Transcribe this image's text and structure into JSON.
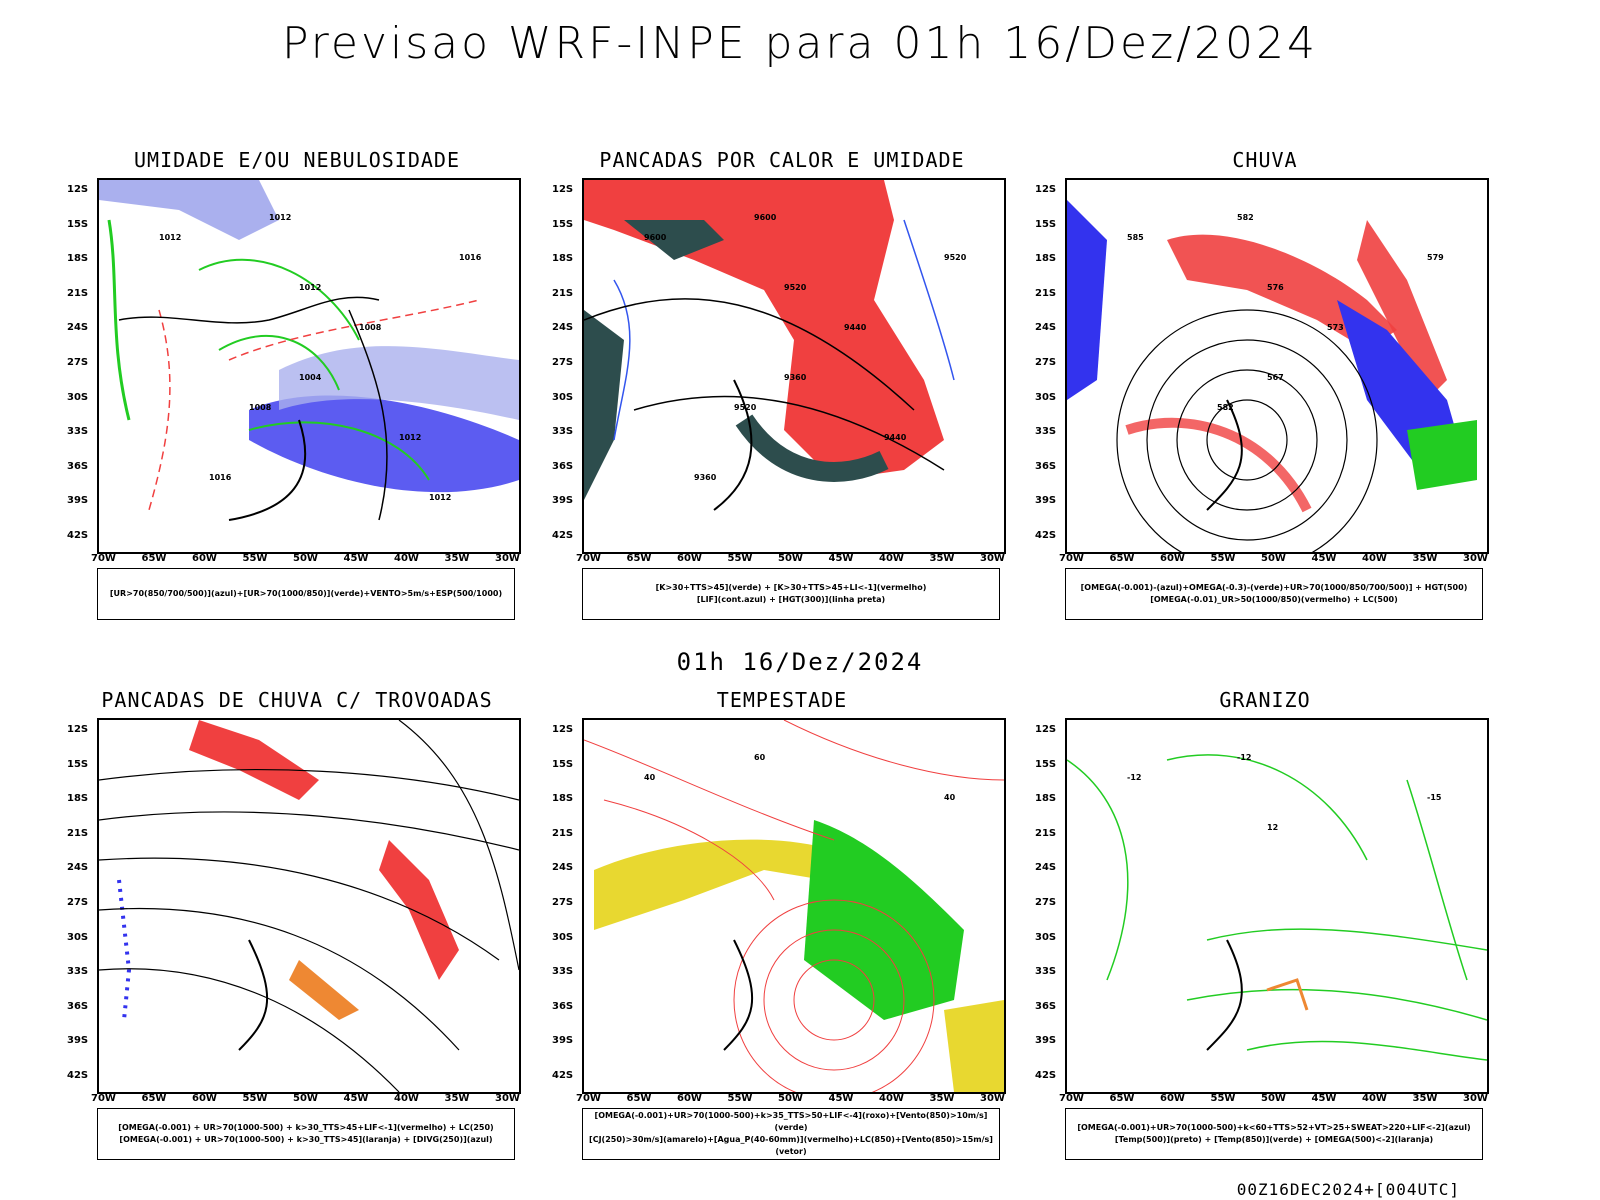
{
  "header": {
    "title": "Previsao WRF-INPE  para 01h 16/Dez/2024",
    "mid_date": "01h 16/Dez/2024",
    "footer": "00Z16DEC2024+[004UTC]"
  },
  "axes": {
    "lat_labels": [
      "12S",
      "15S",
      "18S",
      "21S",
      "24S",
      "27S",
      "30S",
      "33S",
      "36S",
      "39S",
      "42S"
    ],
    "lon_labels": [
      "70W",
      "65W",
      "60W",
      "55W",
      "50W",
      "45W",
      "40W",
      "35W",
      "30W"
    ]
  },
  "panels": [
    {
      "title": "UMIDADE E/OU NEBULOSIDADE",
      "legend": [
        "[UR>70(850/700/500)](azul)+[UR>70(1000/850)](verde)+VENTO>5m/s+ESP(500/1000)"
      ],
      "contour_labels": [
        "1012",
        "1012",
        "1016",
        "1012",
        "1008",
        "1004",
        "1008",
        "1012",
        "1016",
        "1012"
      ]
    },
    {
      "title": "PANCADAS POR CALOR E UMIDADE",
      "legend": [
        "[K>30+TTS>45](verde) + [K>30+TTS>45+LI<-1](vermelho)",
        "[LIF](cont.azul) + [HGT(300)](linha preta)"
      ],
      "contour_labels": [
        "9600",
        "9600",
        "9520",
        "9520",
        "9440",
        "9360",
        "9520",
        "9440",
        "9360"
      ]
    },
    {
      "title": "CHUVA",
      "legend": [
        "[OMEGA(-0.001)-(azul)+OMEGA(-0.3)-(verde)+UR>70(1000/850/700/500)] + HGT(500)",
        "[OMEGA(-0.01)_UR>50(1000/850)(vermelho) + LC(500)"
      ],
      "contour_labels": [
        "585",
        "582",
        "579",
        "576",
        "573",
        "567",
        "582"
      ]
    },
    {
      "title": "PANCADAS DE CHUVA C/ TROVOADAS",
      "legend": [
        "[OMEGA(-0.001) + UR>70(1000-500) + k>30_TTS>45+LIF<-1](vermelho) + LC(250)",
        "[OMEGA(-0.001) + UR>70(1000-500) + k>30_TTS>45](laranja) + [DIVG(250)](azul)"
      ],
      "contour_labels": []
    },
    {
      "title": "TEMPESTADE",
      "legend": [
        "[OMEGA(-0.001)+UR>70(1000-500)+k>35_TTS>50+LIF<-4](roxo)+[Vento(850)>10m/s](verde)",
        "[CJ(250)>30m/s](amarelo)+[Agua_P(40-60mm)](vermelho)+LC(850)+[Vento(850)>15m/s](vetor)"
      ],
      "contour_labels": [
        "40",
        "60",
        "40"
      ]
    },
    {
      "title": "GRANIZO",
      "legend": [
        "[OMEGA(-0.001)+UR>70(1000-500)+k<60+TTS>52+VT>25+SWEAT>220+LIF<-2](azul)",
        "[Temp(500)](preto) + [Temp(850)](verde) + [OMEGA(500)<-2](laranja)"
      ],
      "contour_labels": [
        "-12",
        "-12",
        "-15",
        "12"
      ]
    }
  ],
  "colors": {
    "red": "#f04040",
    "green": "#22cc22",
    "blue": "#3333ee",
    "lightblue": "#aab0ee",
    "darkteal": "#2d4d4d",
    "yellow": "#e8d830",
    "orange": "#ee8833"
  }
}
